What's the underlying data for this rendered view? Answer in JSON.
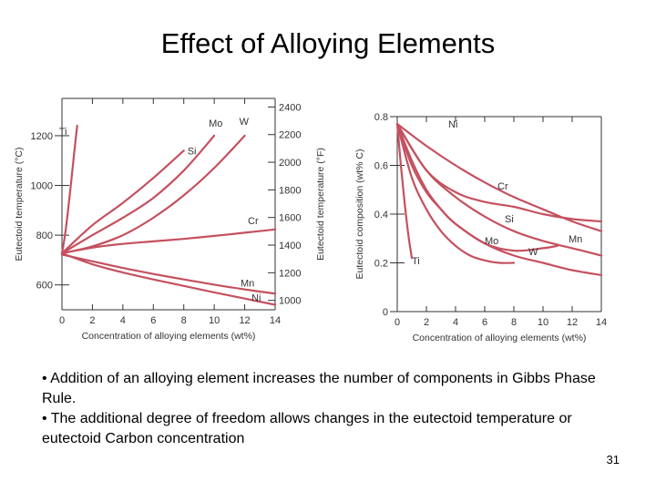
{
  "slide": {
    "title": "Effect of Alloying Elements",
    "bullets": [
      "• Addition of an alloying element increases the number of components in Gibbs Phase Rule.",
      "• The additional degree of freedom allows changes in the eutectoid temperature or eutectoid Carbon concentration"
    ],
    "page_number": "31"
  },
  "colors": {
    "curve": "#c4515f",
    "axis": "#333333"
  },
  "chart_data": [
    {
      "type": "line",
      "title": "",
      "xlabel": "Concentration of alloying elements (wt%)",
      "ylabel": "Eutectoid temperature (°C)",
      "ylabel_right": "Eutectoid temperature (°F)",
      "xlim": [
        0,
        14
      ],
      "ylim": [
        500,
        1350
      ],
      "x_ticks": [
        "0",
        "2",
        "4",
        "6",
        "8",
        "10",
        "12",
        "14"
      ],
      "y_ticks": [
        {
          "value": 600,
          "label": "600"
        },
        {
          "value": 800,
          "label": "800"
        },
        {
          "value": 1000,
          "label": "1000"
        },
        {
          "value": 1200,
          "label": "1200"
        }
      ],
      "y_ticks_right": [
        {
          "value": 1000,
          "label": "1000"
        },
        {
          "value": 1200,
          "label": "1200"
        },
        {
          "value": 1400,
          "label": "1400"
        },
        {
          "value": 1600,
          "label": "1600"
        },
        {
          "value": 1800,
          "label": "1800"
        },
        {
          "value": 2000,
          "label": "2000"
        },
        {
          "value": 2200,
          "label": "2200"
        },
        {
          "value": 2400,
          "label": "2400"
        }
      ],
      "grid": false,
      "series": [
        {
          "name": "Ti",
          "x": [
            0,
            0.2,
            0.4,
            0.6,
            0.8,
            1.0
          ],
          "y": [
            727,
            800,
            900,
            1010,
            1130,
            1240
          ]
        },
        {
          "name": "Mo",
          "x": [
            0,
            2,
            4,
            6,
            8,
            10
          ],
          "y": [
            727,
            800,
            870,
            950,
            1060,
            1200
          ]
        },
        {
          "name": "Si",
          "x": [
            0,
            2,
            4,
            6,
            8
          ],
          "y": [
            727,
            840,
            930,
            1030,
            1140
          ]
        },
        {
          "name": "W",
          "x": [
            0,
            2,
            4,
            6,
            8,
            10,
            12
          ],
          "y": [
            727,
            755,
            800,
            870,
            960,
            1070,
            1200
          ]
        },
        {
          "name": "Cr",
          "x": [
            0,
            2,
            4,
            6,
            8,
            10,
            12,
            14
          ],
          "y": [
            727,
            750,
            765,
            775,
            785,
            797,
            810,
            823
          ]
        },
        {
          "name": "Mn",
          "x": [
            0,
            2,
            4,
            6,
            8,
            10,
            12,
            14
          ],
          "y": [
            722,
            695,
            668,
            644,
            622,
            601,
            582,
            565
          ]
        },
        {
          "name": "Ni",
          "x": [
            0,
            2,
            4,
            6,
            8,
            10,
            12,
            14
          ],
          "y": [
            727,
            683,
            650,
            622,
            596,
            570,
            545,
            520
          ]
        }
      ]
    },
    {
      "type": "line",
      "title": "",
      "xlabel": "Concentration of alloying elements (wt%)",
      "ylabel": "Eutectoid composition (wt% C)",
      "xlim": [
        0,
        14
      ],
      "ylim": [
        0,
        0.8
      ],
      "x_ticks": [
        "0",
        "2",
        "4",
        "6",
        "8",
        "10",
        "12",
        "14"
      ],
      "y_ticks": [
        {
          "value": 0,
          "label": "0"
        },
        {
          "value": 0.2,
          "label": "0.2"
        },
        {
          "value": 0.4,
          "label": "0.4"
        },
        {
          "value": 0.6,
          "label": "0.6"
        },
        {
          "value": 0.8,
          "label": "0.8"
        }
      ],
      "grid": false,
      "series": [
        {
          "name": "Ni",
          "x": [
            0,
            2,
            4,
            6,
            8,
            10,
            12,
            14
          ],
          "y": [
            0.77,
            0.68,
            0.6,
            0.53,
            0.47,
            0.42,
            0.37,
            0.33
          ]
        },
        {
          "name": "Cr",
          "x": [
            0,
            2,
            4,
            6,
            8,
            10,
            12,
            14
          ],
          "y": [
            0.77,
            0.58,
            0.49,
            0.45,
            0.43,
            0.4,
            0.38,
            0.37
          ]
        },
        {
          "name": "Si",
          "x": [
            0,
            1,
            2,
            3,
            4,
            6,
            8,
            10,
            12,
            14
          ],
          "y": [
            0.77,
            0.6,
            0.49,
            0.42,
            0.36,
            0.28,
            0.23,
            0.2,
            0.17,
            0.15
          ]
        },
        {
          "name": "Mn",
          "x": [
            0,
            2,
            4,
            6,
            8,
            10,
            12,
            14
          ],
          "y": [
            0.77,
            0.58,
            0.47,
            0.39,
            0.33,
            0.29,
            0.26,
            0.23
          ]
        },
        {
          "name": "W",
          "x": [
            0,
            1,
            2,
            3,
            4,
            6,
            8,
            10,
            11
          ],
          "y": [
            0.77,
            0.62,
            0.5,
            0.42,
            0.36,
            0.28,
            0.25,
            0.26,
            0.27
          ]
        },
        {
          "name": "Mo",
          "x": [
            0,
            1,
            2,
            3,
            4,
            5,
            6,
            7,
            8
          ],
          "y": [
            0.77,
            0.55,
            0.42,
            0.33,
            0.27,
            0.23,
            0.21,
            0.2,
            0.2
          ]
        },
        {
          "name": "Ti",
          "x": [
            0,
            0.25,
            0.5,
            0.75,
            1.0
          ],
          "y": [
            0.77,
            0.6,
            0.45,
            0.32,
            0.22
          ]
        }
      ]
    }
  ]
}
